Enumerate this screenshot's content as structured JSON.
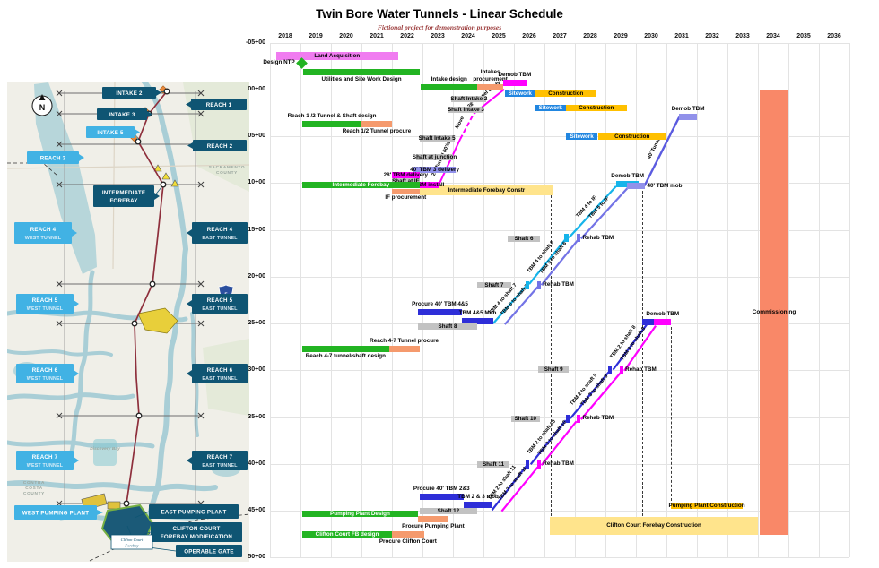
{
  "title": "Twin Bore Water Tunnels - Linear Schedule",
  "subtitle": "Fictional project for demonstration purposes",
  "palette": {
    "green": "#22b422",
    "pink": "#f07cf0",
    "orange": "#f59a6d",
    "gray": "#c2c2c2",
    "magenta": "#ff00ff",
    "purple": "#9191ea",
    "blue": "#2186e0",
    "royal": "#2e2ed8",
    "yellow": "#ffc000",
    "light_yellow": "#ffe48c",
    "salmon": "#f98868",
    "cyan": "#16b4ea",
    "tbm5": "#7373e6",
    "tunnel40": "#5b5be0",
    "grid": "#e3e3e3"
  },
  "map_colors": {
    "navy": "#0f5573",
    "light": "#41b2e4",
    "water": "#b7d6da",
    "water2": "#a9ced6",
    "land": "#f0efe8",
    "red": "#8e2f3c",
    "forebay": "#1b5a78"
  },
  "chart_data": {
    "type": "time-distance-linear-schedule",
    "x_axis": {
      "years": [
        2018,
        2019,
        2020,
        2021,
        2022,
        2023,
        2024,
        2025,
        2026,
        2027,
        2028,
        2029,
        2030,
        2031,
        2032,
        2033,
        2034,
        2035,
        2036
      ]
    },
    "y_axis": {
      "stations": [
        "-05+00",
        "00+00",
        "05+00",
        "10+00",
        "15+00",
        "20+00",
        "25+00",
        "30+00",
        "35+00",
        "40+00",
        "45+00",
        "50+00"
      ],
      "values": [
        -5,
        0,
        5,
        10,
        15,
        20,
        25,
        30,
        35,
        40,
        45,
        50
      ]
    },
    "milestones": [
      {
        "n": "design-ntp-milestone",
        "label": "Design NTP",
        "x": 2018.55,
        "s": -2.8,
        "c": "green"
      }
    ],
    "bars": [
      {
        "n": "land-acquisition",
        "t": "Land Acquisition",
        "c": "pink",
        "x0": 2017.7,
        "x1": 2021.7,
        "s": -3.6,
        "h": 9
      },
      {
        "n": "utilities-site-work-design",
        "l": "Utilities and Site Work Design",
        "lp": "below",
        "c": "green",
        "x0": 2018.6,
        "x1": 2022.4,
        "s": -1.8
      },
      {
        "n": "reach12-design",
        "l": "Reach 1 /2 Tunnel & Shaft design",
        "lp": "above",
        "c": "green",
        "x0": 2018.56,
        "x1": 2020.5,
        "s": 3.7
      },
      {
        "n": "reach12-procure",
        "l": "Reach 1/2 Tunnel procure",
        "lp": "below",
        "c": "orange",
        "x0": 2020.5,
        "x1": 2021.5,
        "s": 3.7
      },
      {
        "n": "intake-design",
        "l": "Intake design",
        "lp": "above",
        "c": "green",
        "x0": 2022.45,
        "x1": 2024.3,
        "s": -0.25
      },
      {
        "n": "intakes-procurement",
        "l": "Intakes\nprocurement",
        "lp": "above",
        "c": "orange",
        "x0": 2024.3,
        "x1": 2025.15,
        "s": -0.25
      },
      {
        "n": "demob-tbm-intake2",
        "l": "Demob TBM",
        "lp": "above",
        "c": "magenta",
        "x0": 2025.15,
        "x1": 2025.9,
        "s": -0.7
      },
      {
        "n": "sitework-intake2",
        "t": "Sitework",
        "c": "blue",
        "tc": "#fff",
        "x0": 2025.2,
        "x1": 2026.2,
        "s": 0.45
      },
      {
        "n": "construction-intake2",
        "t": "Construction",
        "c": "yellow",
        "x0": 2026.2,
        "x1": 2028.2,
        "s": 0.45
      },
      {
        "n": "shaft-intake2",
        "t": "Shaft Intake 2",
        "c": "gray",
        "x0": 2023.45,
        "x1": 2024.6,
        "s": 1.05
      },
      {
        "n": "shaft-intake3",
        "t": "Shaft Intake 3",
        "c": "gray",
        "x0": 2023.35,
        "x1": 2024.5,
        "s": 2.15
      },
      {
        "n": "sitework-intake3",
        "t": "Sitework",
        "c": "blue",
        "tc": "#fff",
        "x0": 2026.2,
        "x1": 2027.2,
        "s": 1.95
      },
      {
        "n": "construction-intake3",
        "t": "Construction",
        "c": "yellow",
        "x0": 2027.2,
        "x1": 2029.2,
        "s": 1.95
      },
      {
        "n": "shaft-intake5",
        "t": "Shaft Intake 5",
        "c": "gray",
        "x0": 2022.4,
        "x1": 2023.55,
        "s": 5.25
      },
      {
        "n": "sitework-intake5",
        "t": "Sitework",
        "c": "blue",
        "tc": "#fff",
        "x0": 2027.2,
        "x1": 2028.25,
        "s": 5.05
      },
      {
        "n": "construction-intake5",
        "t": "Construction",
        "c": "yellow",
        "x0": 2028.25,
        "x1": 2030.5,
        "s": 5.05
      },
      {
        "n": "shaft-at-junction",
        "t": "Shaft at junction",
        "c": "gray",
        "x0": 2022.3,
        "x1": 2023.5,
        "s": 7.25
      },
      {
        "n": "tbm3-delivery",
        "t": "40' TBM 3 delivery",
        "c": "purple",
        "x0": 2022.2,
        "x1": 2023.6,
        "s": 8.55
      },
      {
        "n": "tbm28-delivery",
        "t": "28' TBM delivery",
        "c": "magenta",
        "x0": 2021.5,
        "x1": 2022.4,
        "s": 9.2
      },
      {
        "n": "shaft-at-if",
        "t": "Shaft at IF",
        "c": "gray",
        "x0": 2021.5,
        "x1": 2022.4,
        "s": 9.8
      },
      {
        "n": "intermediate-forebay-constr",
        "t": "Intermediate Forebay Constr",
        "c": "light_yellow",
        "x0": 2022.4,
        "x1": 2026.8,
        "s": 10.75,
        "h": 12
      },
      {
        "n": "tbm-install",
        "t": "TBM install",
        "c": "magenta",
        "x0": 2022.4,
        "x1": 2023.05,
        "s": 10.2
      },
      {
        "n": "intermediate-forebay-design",
        "t": "Intermediate Forebay",
        "c": "green",
        "tc": "#fff",
        "x0": 2018.56,
        "x1": 2022.4,
        "s": 10.2
      },
      {
        "n": "if-procurement",
        "l": "IF procurement",
        "lp": "below",
        "c": "orange",
        "x0": 2021.5,
        "x1": 2022.4,
        "s": 10.85,
        "h": 5
      },
      {
        "n": "demob-tbm-if",
        "l": "Demob TBM",
        "lp": "above",
        "c": "cyan",
        "x0": 2028.85,
        "x1": 2029.6,
        "s": 10.15
      },
      {
        "n": "tbm40-mob",
        "l": "40' TBM mob",
        "lp": "right",
        "c": "purple",
        "x0": 2029.2,
        "x1": 2029.78,
        "s": 10.35
      },
      {
        "n": "demob-tbm-40",
        "l": "Demob TBM",
        "lp": "above",
        "c": "purple",
        "x0": 2030.92,
        "x1": 2031.5,
        "s": 2.9
      },
      {
        "n": "shaft6",
        "t": "Shaft 6",
        "c": "gray",
        "x0": 2025.3,
        "x1": 2026.35,
        "s": 15.95
      },
      {
        "n": "shaft7",
        "t": "Shaft 7",
        "c": "gray",
        "x0": 2024.3,
        "x1": 2025.4,
        "s": 20.95
      },
      {
        "n": "procure-tbm45",
        "l": "Procure 40' TBM 4&5",
        "lp": "above",
        "c": "royal",
        "x0": 2022.35,
        "x1": 2023.8,
        "s": 23.85
      },
      {
        "n": "tbm45-mob",
        "l": "TBM 4&5 Mob",
        "lp": "above",
        "c": "royal",
        "x0": 2023.8,
        "x1": 2024.82,
        "s": 24.8
      },
      {
        "n": "shaft8",
        "t": "Shaft 8",
        "c": "gray",
        "x0": 2022.35,
        "x1": 2024.3,
        "s": 25.35
      },
      {
        "n": "demob-25-chip",
        "c": "royal",
        "x0": 2029.72,
        "x1": 2030.1,
        "s": 24.9
      },
      {
        "n": "demob-tbm-25",
        "l": "Demob TBM",
        "lp": "above",
        "c": "magenta",
        "x0": 2030.1,
        "x1": 2030.65,
        "s": 24.9
      },
      {
        "n": "reach47-procure",
        "l": "Reach 4-7 Tunnel procure",
        "lp": "above",
        "c": "orange",
        "x0": 2021.4,
        "x1": 2022.4,
        "s": 27.7
      },
      {
        "n": "reach47-design",
        "l": "Reach 4-7 tunnel/shaft design",
        "lp": "below",
        "c": "green",
        "x0": 2018.56,
        "x1": 2021.4,
        "s": 27.7
      },
      {
        "n": "shaft9",
        "t": "Shaft 9",
        "c": "gray",
        "x0": 2026.3,
        "x1": 2027.3,
        "s": 29.95
      },
      {
        "n": "shaft10",
        "t": "Shaft 10",
        "c": "gray",
        "x0": 2025.4,
        "x1": 2026.35,
        "s": 35.15
      },
      {
        "n": "shaft11",
        "t": "Shaft 11",
        "c": "gray",
        "x0": 2024.3,
        "x1": 2025.35,
        "s": 40.05
      },
      {
        "n": "procure-tbm23",
        "l": "Procure 40' TBM 2&3",
        "lp": "above",
        "c": "royal",
        "x0": 2022.4,
        "x1": 2023.85,
        "s": 43.55
      },
      {
        "n": "tbm23-mob",
        "l": "TBM 2 & 3 mob",
        "lp": "above",
        "c": "royal",
        "x0": 2023.85,
        "x1": 2024.8,
        "s": 44.35
      },
      {
        "n": "shaft12",
        "t": "Shaft 12",
        "c": "gray",
        "x0": 2022.4,
        "x1": 2024.3,
        "s": 45.0
      },
      {
        "n": "pumping-plant-design",
        "t": "Pumping Plant Design",
        "c": "green",
        "tc": "#fff",
        "x0": 2018.56,
        "x1": 2022.35,
        "s": 45.3
      },
      {
        "n": "procure-pumping-plant",
        "l": "Procure Pumping Plant",
        "lp": "below",
        "c": "orange",
        "x0": 2022.35,
        "x1": 2023.35,
        "s": 45.95
      },
      {
        "n": "pumping-plant-construction",
        "t": "Pumping Plant Construction",
        "c": "yellow",
        "x0": 2030.65,
        "x1": 2033.0,
        "s": 44.45
      },
      {
        "n": "clifton-court-fb-design",
        "t": "Clifton Court FB design",
        "c": "green",
        "tc": "#fff",
        "x0": 2018.56,
        "x1": 2021.5,
        "s": 47.55
      },
      {
        "n": "procure-clifton-court",
        "l": "Procure Clifton Court",
        "lp": "below",
        "c": "orange",
        "x0": 2021.5,
        "x1": 2022.55,
        "s": 47.55
      },
      {
        "n": "clifton-court-forebay-construction",
        "t": "Clifton Court Forebay Construction",
        "c": "light_yellow",
        "x0": 2026.68,
        "x1": 2033.5,
        "s": 46.6,
        "h": 20
      }
    ],
    "chips": [
      {
        "c": "cyan",
        "x0": 2025.88,
        "x1": 2026.0,
        "s": 20.9
      },
      {
        "c": "tbm5",
        "x0": 2026.26,
        "x1": 2026.38,
        "s": 20.9
      },
      {
        "c": "cyan",
        "x0": 2027.16,
        "x1": 2027.28,
        "s": 15.9
      },
      {
        "c": "tbm5",
        "x0": 2027.56,
        "x1": 2027.68,
        "s": 15.9
      },
      {
        "c": "royal",
        "x0": 2025.88,
        "x1": 2026.0,
        "s": 40.05
      },
      {
        "c": "magenta",
        "x0": 2026.26,
        "x1": 2026.38,
        "s": 40.05
      },
      {
        "c": "royal",
        "x0": 2027.2,
        "x1": 2027.32,
        "s": 35.15
      },
      {
        "c": "magenta",
        "x0": 2027.56,
        "x1": 2027.68,
        "s": 35.15
      },
      {
        "c": "royal",
        "x0": 2028.6,
        "x1": 2028.72,
        "s": 29.95
      },
      {
        "c": "magenta",
        "x0": 2028.96,
        "x1": 2029.08,
        "s": 29.95
      }
    ],
    "texts": [
      {
        "t": "Rehab TBM",
        "x": 2026.45,
        "s": 20.9
      },
      {
        "t": "Rehab TBM",
        "x": 2027.75,
        "s": 15.9
      },
      {
        "t": "Rehab TBM",
        "x": 2026.45,
        "s": 40.05
      },
      {
        "t": "Rehab TBM",
        "x": 2027.75,
        "s": 35.15
      },
      {
        "t": "Rehab TBM",
        "x": 2029.15,
        "s": 29.95
      }
    ],
    "lines": [
      {
        "n": "tunnel-28-drive",
        "c": "magenta",
        "w": 2,
        "segs": [
          {
            "x0": 2023.05,
            "s0": 10.1,
            "x1": 2023.74,
            "s1": 5.3,
            "label": "28' Tunnel 60'/dy"
          },
          {
            "x0": 2023.74,
            "s0": 5.3,
            "x1": 2024.18,
            "s1": 2.6,
            "dash": true,
            "label": "Move"
          },
          {
            "x0": 2024.18,
            "s0": 2.6,
            "x1": 2025.18,
            "s1": 0.0,
            "label": "28' Tunnel 60'/dy"
          }
        ]
      },
      {
        "n": "tbm4-drive",
        "c": "cyan",
        "w": 2.2,
        "segs": [
          {
            "x0": 2024.82,
            "s0": 25.0,
            "x1": 2025.9,
            "s1": 21.0,
            "label": "TBM 4 to shaft 7"
          },
          {
            "x0": 2026.0,
            "s0": 20.8,
            "x1": 2027.18,
            "s1": 16.05,
            "label": "TBM 4 to shaft 6"
          },
          {
            "x0": 2027.3,
            "s0": 15.85,
            "x1": 2028.85,
            "s1": 10.35,
            "label": "TBM 4 to IF"
          }
        ]
      },
      {
        "n": "tbm5-drive",
        "c": "tbm5",
        "w": 2.2,
        "segs": [
          {
            "x0": 2025.2,
            "s0": 25.1,
            "x1": 2026.28,
            "s1": 21.1,
            "label": "TBM 5 to shaft 7"
          },
          {
            "x0": 2026.4,
            "s0": 20.9,
            "x1": 2027.58,
            "s1": 16.15,
            "label": "TBM 5 to shaft 6"
          },
          {
            "x0": 2027.7,
            "s0": 15.95,
            "x1": 2029.25,
            "s1": 10.45,
            "label": "TBM 5 to IF"
          }
        ]
      },
      {
        "n": "tbm2-drive",
        "c": "royal",
        "w": 2.2,
        "segs": [
          {
            "x0": 2024.78,
            "s0": 44.95,
            "x1": 2025.9,
            "s1": 40.25,
            "label": "TBM 2 to shaft 11"
          },
          {
            "x0": 2026.05,
            "s0": 40.05,
            "x1": 2027.2,
            "s1": 35.35,
            "label": "TBM 2 to shaft 10"
          },
          {
            "x0": 2027.35,
            "s0": 35.15,
            "x1": 2028.62,
            "s1": 30.15,
            "label": "TBM 2 to shaft 9"
          },
          {
            "x0": 2028.75,
            "s0": 29.95,
            "x1": 2029.85,
            "s1": 25.15,
            "label": "TBM 2 to shaft 8"
          }
        ]
      },
      {
        "n": "tbm3-drive",
        "c": "magenta",
        "w": 2.2,
        "segs": [
          {
            "x0": 2025.1,
            "s0": 45.05,
            "x1": 2026.28,
            "s1": 40.35,
            "label": "TBM 3 to shaft 11"
          },
          {
            "x0": 2026.4,
            "s0": 40.15,
            "x1": 2027.55,
            "s1": 35.45,
            "label": "TBM 3 to shaft 10"
          },
          {
            "x0": 2027.7,
            "s0": 35.25,
            "x1": 2029.0,
            "s1": 30.25,
            "label": "TBM 3 to shaft 9"
          },
          {
            "x0": 2029.12,
            "s0": 30.05,
            "x1": 2030.15,
            "s1": 25.25,
            "label": "TBM 3 to shaft 8"
          }
        ]
      },
      {
        "n": "tunnel-40-drive",
        "c": "tunnel40",
        "w": 2.4,
        "segs": [
          {
            "x0": 2029.78,
            "s0": 10.3,
            "x1": 2030.92,
            "s1": 2.95,
            "label": "40' Tunnel"
          }
        ]
      }
    ],
    "vlines": [
      {
        "x": 2026.7,
        "s0": 11.3,
        "s1": 45.6
      },
      {
        "x": 2029.7,
        "s0": 10.8,
        "s1": 45.6
      },
      {
        "x": 2030.65,
        "s0": 25.35,
        "s1": 44.4
      }
    ],
    "blocks": [
      {
        "n": "commissioning",
        "t": "Commissioning",
        "c": "salmon",
        "x0": 2033.56,
        "x1": 2034.5,
        "s0": 0.1,
        "s1": 47.6
      }
    ]
  },
  "map": {
    "compass_letter": "N",
    "interstate": "5",
    "county_sacramento": [
      "SACRAMENTO",
      "COUNTY"
    ],
    "county_contra_costa": [
      "CONTRA",
      "COSTA",
      "COUNTY"
    ],
    "discovery_bay": "Discovery Bay",
    "clifton_tag": [
      "Clifton Court",
      "Forebay"
    ],
    "labels": {
      "intake2": "INTAKE 2",
      "intake3": "INTAKE 3",
      "intake5": "INTAKE 5",
      "reach1": "REACH 1",
      "reach2": "REACH 2",
      "reach3": "REACH 3",
      "intermediate_forebay": [
        "INTERMEDIATE",
        "FOREBAY"
      ],
      "reach4w": [
        "REACH 4",
        "WEST TUNNEL"
      ],
      "reach4e": [
        "REACH 4",
        "EAST TUNNEL"
      ],
      "reach5w": [
        "REACH 5",
        "WEST TUNNEL"
      ],
      "reach5e": [
        "REACH 5",
        "EAST TUNNEL"
      ],
      "reach6w": [
        "REACH 6",
        "WEST TUNNEL"
      ],
      "reach6e": [
        "REACH 6",
        "EAST TUNNEL"
      ],
      "reach7w": [
        "REACH 7",
        "WEST TUNNEL"
      ],
      "reach7e": [
        "REACH 7",
        "EAST TUNNEL"
      ],
      "west_pp": "WEST PUMPING PLANT",
      "east_pp": "EAST PUMPING PLANT",
      "cc_mod": [
        "CLIFTON COURT",
        "FOREBAY MODIFICATION"
      ],
      "operable_gate": "OPERABLE GATE"
    }
  }
}
